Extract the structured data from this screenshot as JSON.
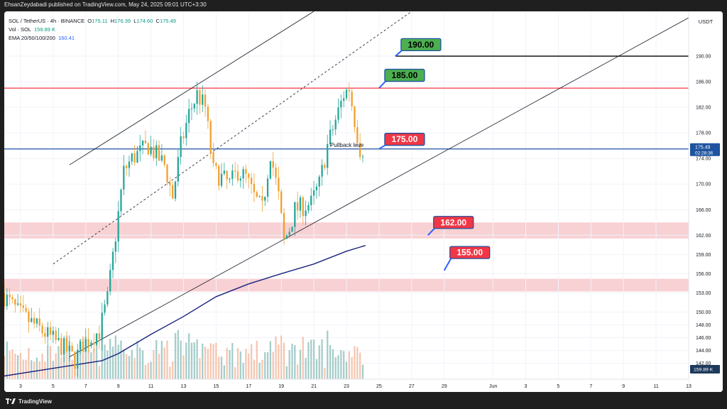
{
  "header": {
    "published": "EhsanZeydabadi published on TradingView.com, May 24, 2025 09:01 UTC+3:30"
  },
  "footer": {
    "brand": "TradingView",
    "logo_icon": "tradingview-logo-icon"
  },
  "legend": {
    "symbol": "SOL / TetherUS · 4h · BINANCE",
    "o_label": "O",
    "o": "175.11",
    "h_label": "H",
    "h": "176.39",
    "l_label": "L",
    "l": "174.60",
    "c_label": "C",
    "c": "175.49",
    "vol_label": "Vol · SOL",
    "vol": "159.89 K",
    "ema_label": "EMA 20/50/100/200",
    "ema": "160.41"
  },
  "chart_data": {
    "type": "candlestick",
    "currency": "USDT",
    "ylim": [
      139.5,
      197
    ],
    "y_ticks": [
      142.0,
      144.0,
      146.0,
      148.0,
      150.0,
      153.0,
      156.0,
      159.0,
      162.0,
      166.0,
      170.0,
      174.0,
      178.0,
      182.0,
      186.0,
      190.0
    ],
    "x_range": [
      "2025-05-02",
      "2025-06-13"
    ],
    "x_ticks": [
      {
        "date": "2025-05-03",
        "label": "3"
      },
      {
        "date": "2025-05-05",
        "label": "5"
      },
      {
        "date": "2025-05-07",
        "label": "7"
      },
      {
        "date": "2025-05-09",
        "label": "9"
      },
      {
        "date": "2025-05-11",
        "label": "11"
      },
      {
        "date": "2025-05-13",
        "label": "13"
      },
      {
        "date": "2025-05-15",
        "label": "15"
      },
      {
        "date": "2025-05-17",
        "label": "17"
      },
      {
        "date": "2025-05-19",
        "label": "19"
      },
      {
        "date": "2025-05-21",
        "label": "21"
      },
      {
        "date": "2025-05-23",
        "label": "23"
      },
      {
        "date": "2025-05-25",
        "label": "25"
      },
      {
        "date": "2025-05-27",
        "label": "27"
      },
      {
        "date": "2025-05-29",
        "label": "29"
      },
      {
        "date": "2025-06-01",
        "label": "Jun"
      },
      {
        "date": "2025-06-03",
        "label": "3"
      },
      {
        "date": "2025-06-05",
        "label": "5"
      },
      {
        "date": "2025-06-07",
        "label": "7"
      },
      {
        "date": "2025-06-09",
        "label": "9"
      },
      {
        "date": "2025-06-11",
        "label": "11"
      },
      {
        "date": "2025-06-13",
        "label": "13"
      }
    ],
    "price_path": [
      {
        "date": "2025-05-02 00:00",
        "price": 153.0
      },
      {
        "date": "2025-05-03 00:00",
        "price": 150.0
      },
      {
        "date": "2025-05-04 00:00",
        "price": 148.0
      },
      {
        "date": "2025-05-05 00:00",
        "price": 146.0
      },
      {
        "date": "2025-05-06 00:00",
        "price": 144.0
      },
      {
        "date": "2025-05-06 12:00",
        "price": 142.5
      },
      {
        "date": "2025-05-07 00:00",
        "price": 145.0
      },
      {
        "date": "2025-05-08 00:00",
        "price": 147.0
      },
      {
        "date": "2025-05-08 12:00",
        "price": 152.0
      },
      {
        "date": "2025-05-09 00:00",
        "price": 162.0
      },
      {
        "date": "2025-05-09 12:00",
        "price": 172.0
      },
      {
        "date": "2025-05-10 00:00",
        "price": 174.0
      },
      {
        "date": "2025-05-11 00:00",
        "price": 176.0
      },
      {
        "date": "2025-05-12 00:00",
        "price": 173.0
      },
      {
        "date": "2025-05-12 12:00",
        "price": 168.0
      },
      {
        "date": "2025-05-13 00:00",
        "price": 176.0
      },
      {
        "date": "2025-05-13 12:00",
        "price": 181.0
      },
      {
        "date": "2025-05-14 00:00",
        "price": 184.0
      },
      {
        "date": "2025-05-14 12:00",
        "price": 182.0
      },
      {
        "date": "2025-05-15 00:00",
        "price": 172.0
      },
      {
        "date": "2025-05-16 00:00",
        "price": 170.0
      },
      {
        "date": "2025-05-16 12:00",
        "price": 172.0
      },
      {
        "date": "2025-05-17 00:00",
        "price": 171.0
      },
      {
        "date": "2025-05-17 12:00",
        "price": 168.0
      },
      {
        "date": "2025-05-18 00:00",
        "price": 166.0
      },
      {
        "date": "2025-05-18 12:00",
        "price": 175.0
      },
      {
        "date": "2025-05-19 00:00",
        "price": 168.0
      },
      {
        "date": "2025-05-19 08:00",
        "price": 161.0
      },
      {
        "date": "2025-05-19 16:00",
        "price": 163.0
      },
      {
        "date": "2025-05-20 00:00",
        "price": 166.0
      },
      {
        "date": "2025-05-21 00:00",
        "price": 167.0
      },
      {
        "date": "2025-05-21 12:00",
        "price": 170.0
      },
      {
        "date": "2025-05-22 00:00",
        "price": 176.0
      },
      {
        "date": "2025-05-22 12:00",
        "price": 180.0
      },
      {
        "date": "2025-05-23 00:00",
        "price": 184.0
      },
      {
        "date": "2025-05-23 08:00",
        "price": 185.0
      },
      {
        "date": "2025-05-23 16:00",
        "price": 180.0
      },
      {
        "date": "2025-05-24 00:00",
        "price": 175.5
      }
    ],
    "ema_path": [
      {
        "date": "2025-05-02 00:00",
        "value": 140.0
      },
      {
        "date": "2025-05-05 00:00",
        "value": 141.2
      },
      {
        "date": "2025-05-08 00:00",
        "value": 142.4
      },
      {
        "date": "2025-05-09 00:00",
        "value": 143.5
      },
      {
        "date": "2025-05-11 00:00",
        "value": 146.5
      },
      {
        "date": "2025-05-13 00:00",
        "value": 149.3
      },
      {
        "date": "2025-05-15 00:00",
        "value": 152.4
      },
      {
        "date": "2025-05-17 00:00",
        "value": 154.4
      },
      {
        "date": "2025-05-19 00:00",
        "value": 156.0
      },
      {
        "date": "2025-05-21 00:00",
        "value": 157.5
      },
      {
        "date": "2025-05-23 00:00",
        "value": 159.5
      },
      {
        "date": "2025-05-24 04:00",
        "value": 160.4
      }
    ],
    "zones": [
      {
        "low": 161.5,
        "high": 164.0,
        "color": "#f7c9cc"
      },
      {
        "low": 153.2,
        "high": 155.2,
        "color": "#f7c9cc"
      }
    ],
    "levels": [
      {
        "price": 190.0,
        "from": "2025-05-26 00:00",
        "to": "2025-06-13 00:00",
        "color": "#000000"
      },
      {
        "price": 185.0,
        "from": "2025-05-02 00:00",
        "to": "2025-06-13 00:00",
        "color": "#f23645"
      },
      {
        "price": 175.49,
        "from": "2025-05-02 00:00",
        "to": "2025-06-13 00:00",
        "color": "#1e53a0"
      }
    ],
    "channel_lines": [
      {
        "from": {
          "date": "2025-05-06 00:00",
          "price": 173.0
        },
        "to": {
          "date": "2025-05-21 00:00",
          "price": 197.0
        },
        "dashed": false
      },
      {
        "from": {
          "date": "2025-05-05 00:00",
          "price": 157.5
        },
        "to": {
          "date": "2025-05-27 00:00",
          "price": 197.0
        },
        "dashed": true
      },
      {
        "from": {
          "date": "2025-05-06 00:00",
          "price": 143.0
        },
        "to": {
          "date": "2025-06-13 00:00",
          "price": 196.0
        },
        "dashed": false
      }
    ],
    "callouts": [
      {
        "label": "190.00",
        "price": 191.8,
        "anchor": {
          "date": "2025-05-26 00:00",
          "price": 190.0
        },
        "color": "#4caf50",
        "text_color": "#000000"
      },
      {
        "label": "185.00",
        "price": 187.0,
        "anchor": {
          "date": "2025-05-25 00:00",
          "price": 185.0
        },
        "color": "#4caf50",
        "text_color": "#000000"
      },
      {
        "label": "175.00",
        "price": 177.0,
        "anchor": {
          "date": "2025-05-25 00:00",
          "price": 175.5
        },
        "color": "#f23645",
        "text_color": "#ffffff"
      },
      {
        "label": "162.00",
        "price": 164.0,
        "anchor": {
          "date": "2025-05-28 00:00",
          "price": 162.0
        },
        "color": "#f23645",
        "text_color": "#ffffff"
      },
      {
        "label": "155.00",
        "price": 159.3,
        "anchor": {
          "date": "2025-05-29 00:00",
          "price": 156.5
        },
        "color": "#f23645",
        "text_color": "#ffffff"
      }
    ],
    "annotation": {
      "text": "Pullback leve",
      "date": "2025-05-22 00:00",
      "price": 175.8
    },
    "last_price": {
      "value": "175.49",
      "countdown": "02:28:36",
      "color": "#1e53a0"
    },
    "volume_label": {
      "value": "159.89 K",
      "color": "#1d3a5c"
    },
    "colors": {
      "up": "#26a69a",
      "down": "#f0a030",
      "ema": "#1a237e",
      "vol_up": "#9cc8c4",
      "vol_down": "#f4c0a8"
    }
  }
}
